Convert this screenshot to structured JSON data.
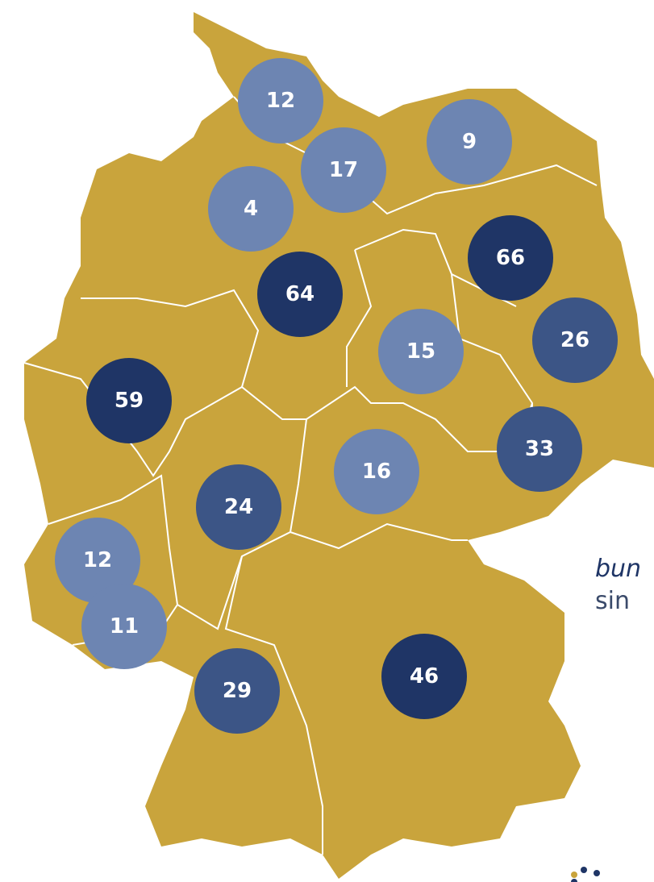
{
  "markers": [
    {
      "label": "12",
      "color": "#6d85b2"
    },
    {
      "label": "17",
      "color": "#6d85b2"
    },
    {
      "label": "9",
      "color": "#6d85b2"
    },
    {
      "label": "4",
      "color": "#6d85b2"
    },
    {
      "label": "64",
      "color": "#1f3566"
    },
    {
      "label": "66",
      "color": "#1f3566"
    },
    {
      "label": "26",
      "color": "#3c5586"
    },
    {
      "label": "15",
      "color": "#6d85b2"
    },
    {
      "label": "59",
      "color": "#1f3566"
    },
    {
      "label": "33",
      "color": "#3c5586"
    },
    {
      "label": "16",
      "color": "#6d85b2"
    },
    {
      "label": "24",
      "color": "#3c5586"
    },
    {
      "label": "12",
      "color": "#6d85b2"
    },
    {
      "label": "11",
      "color": "#6d85b2"
    },
    {
      "label": "46",
      "color": "#1f3566"
    },
    {
      "label": "29",
      "color": "#3c5586"
    }
  ],
  "side_text": {
    "line1": "bun",
    "line2": "sin"
  }
}
